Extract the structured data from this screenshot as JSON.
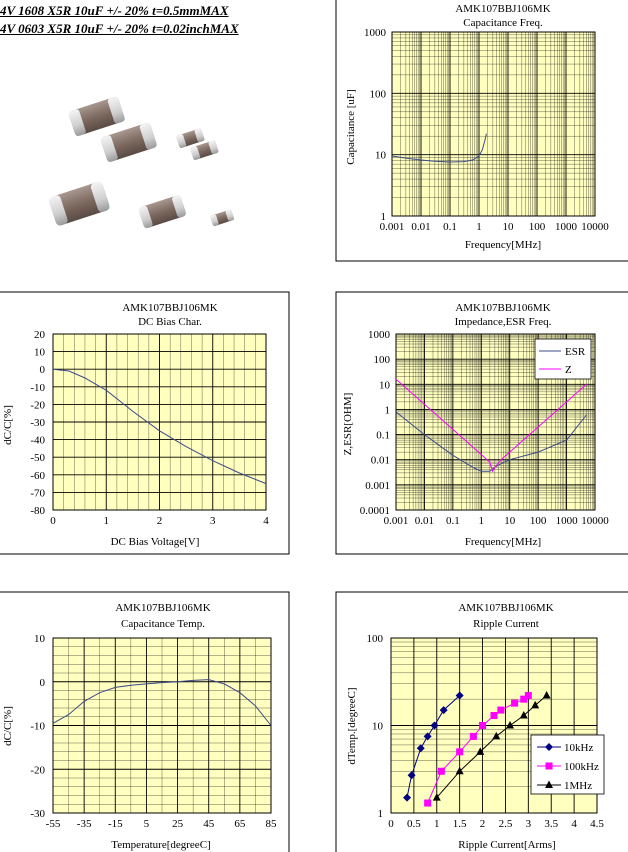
{
  "header": {
    "line1": "4V 1608 X5R 10uF +/- 20% t=0.5mmMAX",
    "line2": "4V 0603 X5R 10uF +/- 20% t=0.02inchMAX"
  },
  "colors": {
    "plot_bg": "#ffffc0",
    "grid": "#000000",
    "series_blue": "#3c4a8a",
    "series_magenta": "#ff00ff",
    "series_navy": "#000080",
    "series_black": "#000000"
  },
  "chart_data": [
    {
      "id": "cap_freq",
      "type": "line",
      "part": "AMK107BBJ106MK",
      "title": "Capacitance Freq.",
      "xlabel": "Frequency[MHz]",
      "ylabel": "Capacitance [uF]",
      "xscale": "log",
      "yscale": "log",
      "xlim": [
        0.001,
        10000
      ],
      "ylim": [
        1,
        1000
      ],
      "xticks": [
        "0.001",
        "0.01",
        "0.1",
        "1",
        "10",
        "100",
        "1000",
        "10000"
      ],
      "yticks": [
        "1",
        "10",
        "100",
        "1000"
      ],
      "series": [
        {
          "color": "#3c4a8a",
          "x": [
            0.001,
            0.003,
            0.01,
            0.03,
            0.1,
            0.3,
            0.6,
            1.0,
            1.3,
            1.6,
            1.8
          ],
          "y": [
            9.5,
            8.8,
            8.2,
            7.8,
            7.6,
            7.7,
            8.2,
            9.5,
            12,
            17,
            22
          ]
        }
      ]
    },
    {
      "id": "dc_bias",
      "type": "line",
      "part": "AMK107BBJ106MK",
      "title": "DC Bias Char.",
      "xlabel": "DC Bias Voltage[V]",
      "ylabel": "dC/C[%]",
      "xscale": "linear",
      "yscale": "linear",
      "xlim": [
        0,
        4
      ],
      "ylim": [
        -80,
        20
      ],
      "xticks": [
        "0",
        "1",
        "2",
        "3",
        "4"
      ],
      "yticks": [
        "20",
        "10",
        "0",
        "-10",
        "-20",
        "-30",
        "-40",
        "-50",
        "-60",
        "-70",
        "-80"
      ],
      "series": [
        {
          "color": "#3c4a8a",
          "x": [
            0,
            0.3,
            0.6,
            1.0,
            1.5,
            2.0,
            2.5,
            3.0,
            3.5,
            4.0
          ],
          "y": [
            0,
            -1,
            -5,
            -12,
            -24,
            -35,
            -44,
            -52,
            -59,
            -65
          ]
        }
      ]
    },
    {
      "id": "impedance",
      "type": "line",
      "part": "AMK107BBJ106MK",
      "title": "Impedance,ESR  Freq.",
      "xlabel": "Frequency[MHz]",
      "ylabel": "Z,ESR[OHM]",
      "xscale": "log",
      "yscale": "log",
      "xlim": [
        0.001,
        10000
      ],
      "ylim": [
        0.0001,
        1000
      ],
      "xticks": [
        "0.001",
        "0.01",
        "0.1",
        "1",
        "10",
        "100",
        "1000",
        "10000"
      ],
      "yticks": [
        "1000",
        "100",
        "10",
        "1",
        "0.1",
        "0.01",
        "0.001",
        "0.0001"
      ],
      "legend": "top-right",
      "series": [
        {
          "name": "ESR",
          "color": "#3c4a8a",
          "x": [
            0.001,
            0.01,
            0.1,
            0.5,
            1.0,
            2.0,
            3.0,
            5.0,
            10,
            100,
            1000,
            5000
          ],
          "y": [
            0.8,
            0.1,
            0.015,
            0.005,
            0.0035,
            0.0035,
            0.005,
            0.007,
            0.01,
            0.02,
            0.06,
            0.6
          ]
        },
        {
          "name": "Z",
          "color": "#ff00ff",
          "x": [
            0.001,
            0.01,
            0.1,
            1.0,
            2.0,
            2.5,
            3.0,
            5.0,
            10,
            100,
            1000,
            5000
          ],
          "y": [
            16,
            1.6,
            0.16,
            0.016,
            0.008,
            0.0035,
            0.005,
            0.01,
            0.02,
            0.2,
            2,
            10
          ]
        }
      ]
    },
    {
      "id": "cap_temp",
      "type": "line",
      "part": "AMK107BBJ106MK",
      "title": "Capacitance Temp.",
      "xlabel": "Temperature[degreeC]",
      "ylabel": "dC/C[%]",
      "xscale": "linear",
      "yscale": "linear",
      "xlim": [
        -55,
        85
      ],
      "ylim": [
        -30,
        10
      ],
      "xticks": [
        "-55",
        "-35",
        "-15",
        "5",
        "25",
        "45",
        "65",
        "85"
      ],
      "yticks": [
        "10",
        "0",
        "-10",
        "-20",
        "-30"
      ],
      "series": [
        {
          "color": "#3c4a8a",
          "x": [
            -55,
            -45,
            -35,
            -25,
            -15,
            -5,
            5,
            15,
            25,
            35,
            45,
            55,
            65,
            75,
            85
          ],
          "y": [
            -9.5,
            -7.5,
            -4.5,
            -2.5,
            -1.3,
            -0.8,
            -0.5,
            -0.2,
            0,
            0.3,
            0.5,
            -0.5,
            -2.5,
            -5.5,
            -10
          ]
        }
      ]
    },
    {
      "id": "ripple",
      "type": "line",
      "part": "AMK107BBJ106MK",
      "title": "Ripple Current",
      "xlabel": "Ripple Current[Arms]",
      "ylabel": "dTemp.[degreeC]",
      "xscale": "linear",
      "yscale": "log",
      "xlim": [
        0,
        4.5
      ],
      "ylim": [
        1,
        100
      ],
      "xticks": [
        "0",
        "0.5",
        "1",
        "1.5",
        "2",
        "2.5",
        "3",
        "3.5",
        "4",
        "4.5"
      ],
      "yticks": [
        "100",
        "10",
        "1"
      ],
      "legend": "bottom-right",
      "series": [
        {
          "name": "10kHz",
          "color": "#000080",
          "marker": "diamond",
          "x": [
            0.35,
            0.45,
            0.65,
            0.8,
            0.95,
            1.15,
            1.5
          ],
          "y": [
            1.5,
            2.7,
            5.5,
            7.5,
            10,
            15,
            22
          ]
        },
        {
          "name": "100kHz",
          "color": "#ff00ff",
          "marker": "square",
          "x": [
            0.8,
            1.1,
            1.5,
            1.8,
            2.0,
            2.25,
            2.4,
            2.7,
            2.9,
            3.0
          ],
          "y": [
            1.3,
            3,
            5,
            7.5,
            10,
            13,
            15,
            18,
            20,
            22
          ]
        },
        {
          "name": "1MHz",
          "color": "#000000",
          "marker": "triangle",
          "x": [
            1.0,
            1.5,
            1.95,
            2.3,
            2.6,
            2.9,
            3.15,
            3.4
          ],
          "y": [
            1.5,
            3,
            5,
            7.5,
            10,
            13,
            17,
            22
          ]
        }
      ]
    }
  ]
}
